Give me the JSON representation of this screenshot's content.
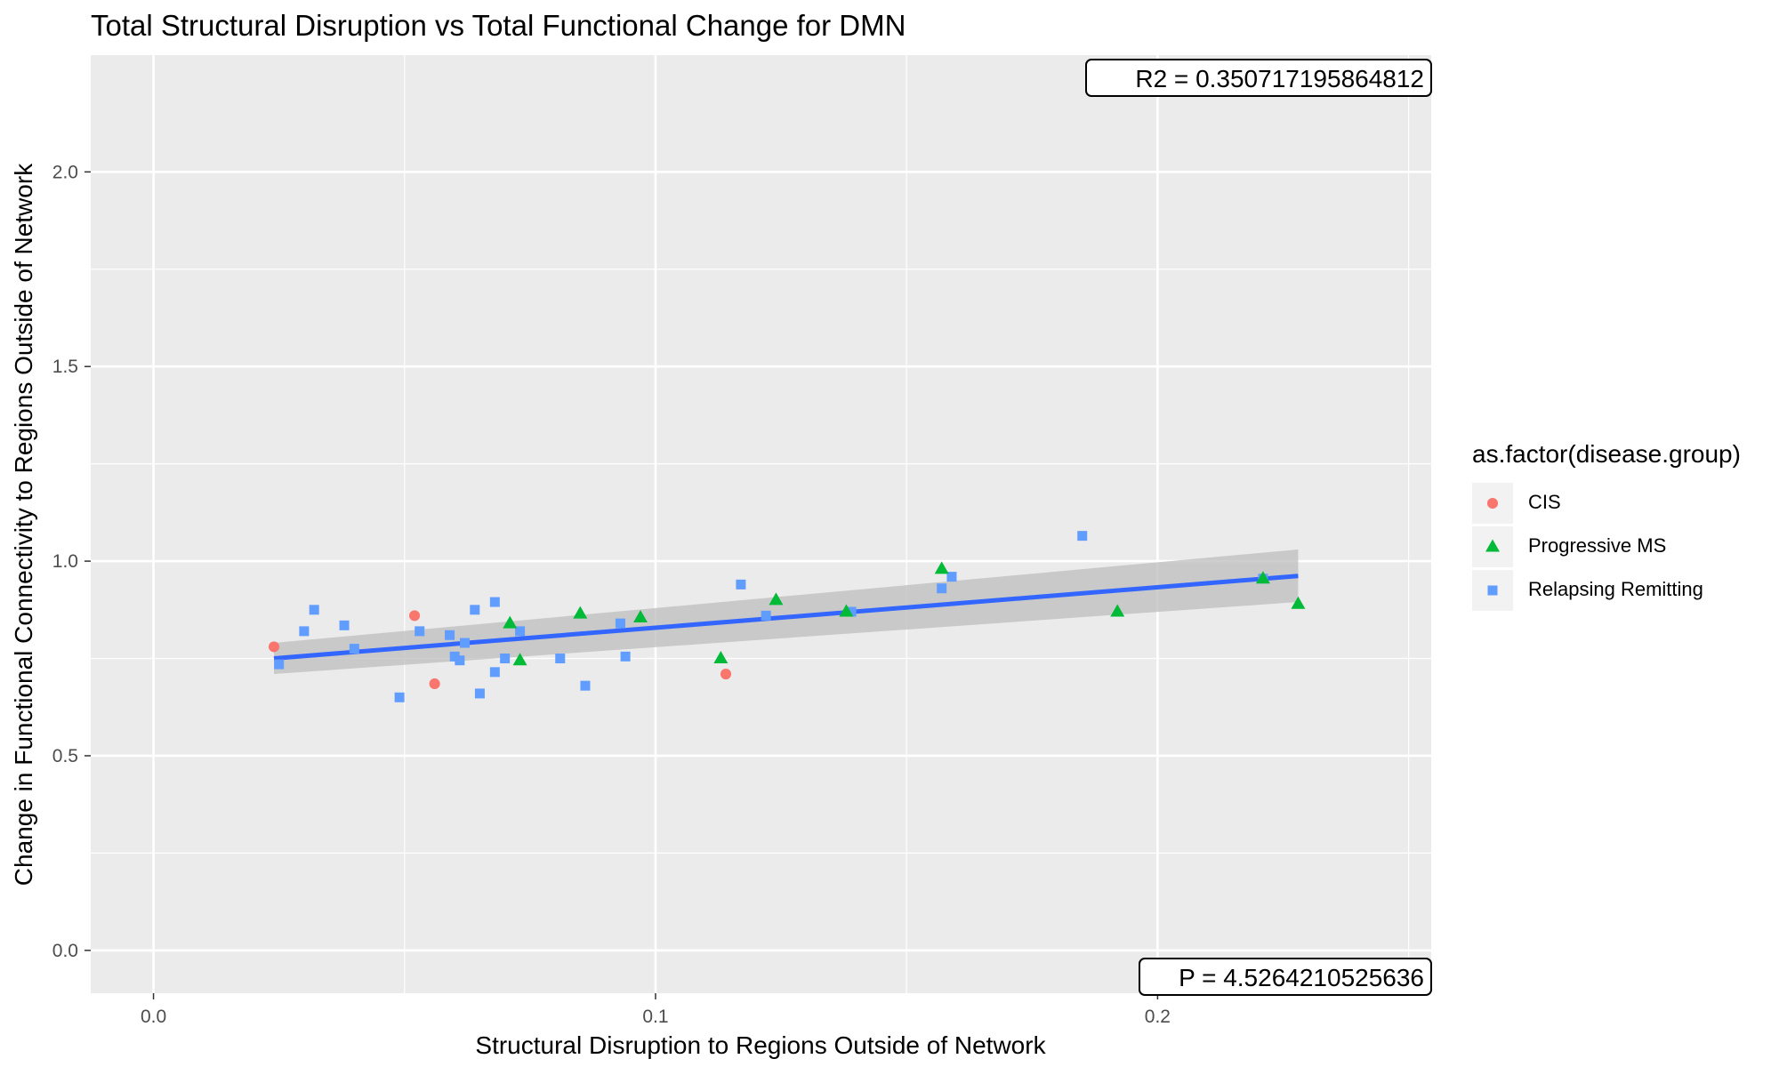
{
  "chart_data": {
    "type": "scatter",
    "title": "Total Structural Disruption vs Total Functional Change for DMN",
    "xlabel": "Structural Disruption to Regions Outside of Network",
    "ylabel": "Change in Functional Connectivity to Regions Outside of Network",
    "xlim": [
      -0.0125,
      0.2545
    ],
    "ylim": [
      -0.11,
      2.3
    ],
    "x_ticks": [
      0.0,
      0.1,
      0.2
    ],
    "x_tick_labels": [
      "0.0",
      "0.1",
      "0.2"
    ],
    "y_ticks": [
      0.0,
      0.5,
      1.0,
      1.5,
      2.0
    ],
    "y_tick_labels": [
      "0.0",
      "0.5",
      "1.0",
      "1.5",
      "2.0"
    ],
    "grid": true,
    "legend": {
      "title": "as.factor(disease.group)",
      "placement": "right"
    },
    "series": [
      {
        "name": "CIS",
        "shape": "circle",
        "color": "#F8766D",
        "points": [
          [
            0.024,
            0.78
          ],
          [
            0.052,
            0.86
          ],
          [
            0.056,
            0.685
          ],
          [
            0.114,
            0.71
          ]
        ]
      },
      {
        "name": "Progressive MS",
        "shape": "triangle",
        "color": "#00BA38",
        "points": [
          [
            0.071,
            0.84
          ],
          [
            0.073,
            0.745
          ],
          [
            0.085,
            0.865
          ],
          [
            0.097,
            0.855
          ],
          [
            0.113,
            0.75
          ],
          [
            0.124,
            0.9
          ],
          [
            0.138,
            0.87
          ],
          [
            0.157,
            0.98
          ],
          [
            0.192,
            0.87
          ],
          [
            0.221,
            0.955
          ],
          [
            0.228,
            0.89
          ]
        ]
      },
      {
        "name": "Relapsing Remitting",
        "shape": "square",
        "color": "#619CFF",
        "points": [
          [
            0.025,
            0.735
          ],
          [
            0.03,
            0.82
          ],
          [
            0.032,
            0.875
          ],
          [
            0.038,
            0.835
          ],
          [
            0.04,
            0.775
          ],
          [
            0.049,
            0.65
          ],
          [
            0.053,
            0.82
          ],
          [
            0.059,
            0.81
          ],
          [
            0.06,
            0.755
          ],
          [
            0.061,
            0.745
          ],
          [
            0.062,
            0.79
          ],
          [
            0.064,
            0.875
          ],
          [
            0.065,
            0.66
          ],
          [
            0.068,
            0.895
          ],
          [
            0.068,
            0.715
          ],
          [
            0.07,
            0.75
          ],
          [
            0.073,
            0.82
          ],
          [
            0.081,
            0.75
          ],
          [
            0.086,
            0.68
          ],
          [
            0.093,
            0.84
          ],
          [
            0.094,
            0.755
          ],
          [
            0.117,
            0.94
          ],
          [
            0.122,
            0.86
          ],
          [
            0.139,
            0.87
          ],
          [
            0.157,
            0.93
          ],
          [
            0.159,
            0.96
          ],
          [
            0.185,
            1.065
          ],
          [
            0.221,
            0.955
          ]
        ]
      }
    ],
    "regression": {
      "x": [
        0.024,
        0.228
      ],
      "y": [
        0.75,
        0.962
      ],
      "ci_lower": [
        0.71,
        0.895
      ],
      "ci_upper": [
        0.79,
        1.03
      ],
      "color": "#3366FF",
      "ci_color": "#BEBEBE"
    },
    "annotations": {
      "r2": "R2 =  0.350717195864812",
      "p": "P =  4.5264210525636"
    }
  }
}
